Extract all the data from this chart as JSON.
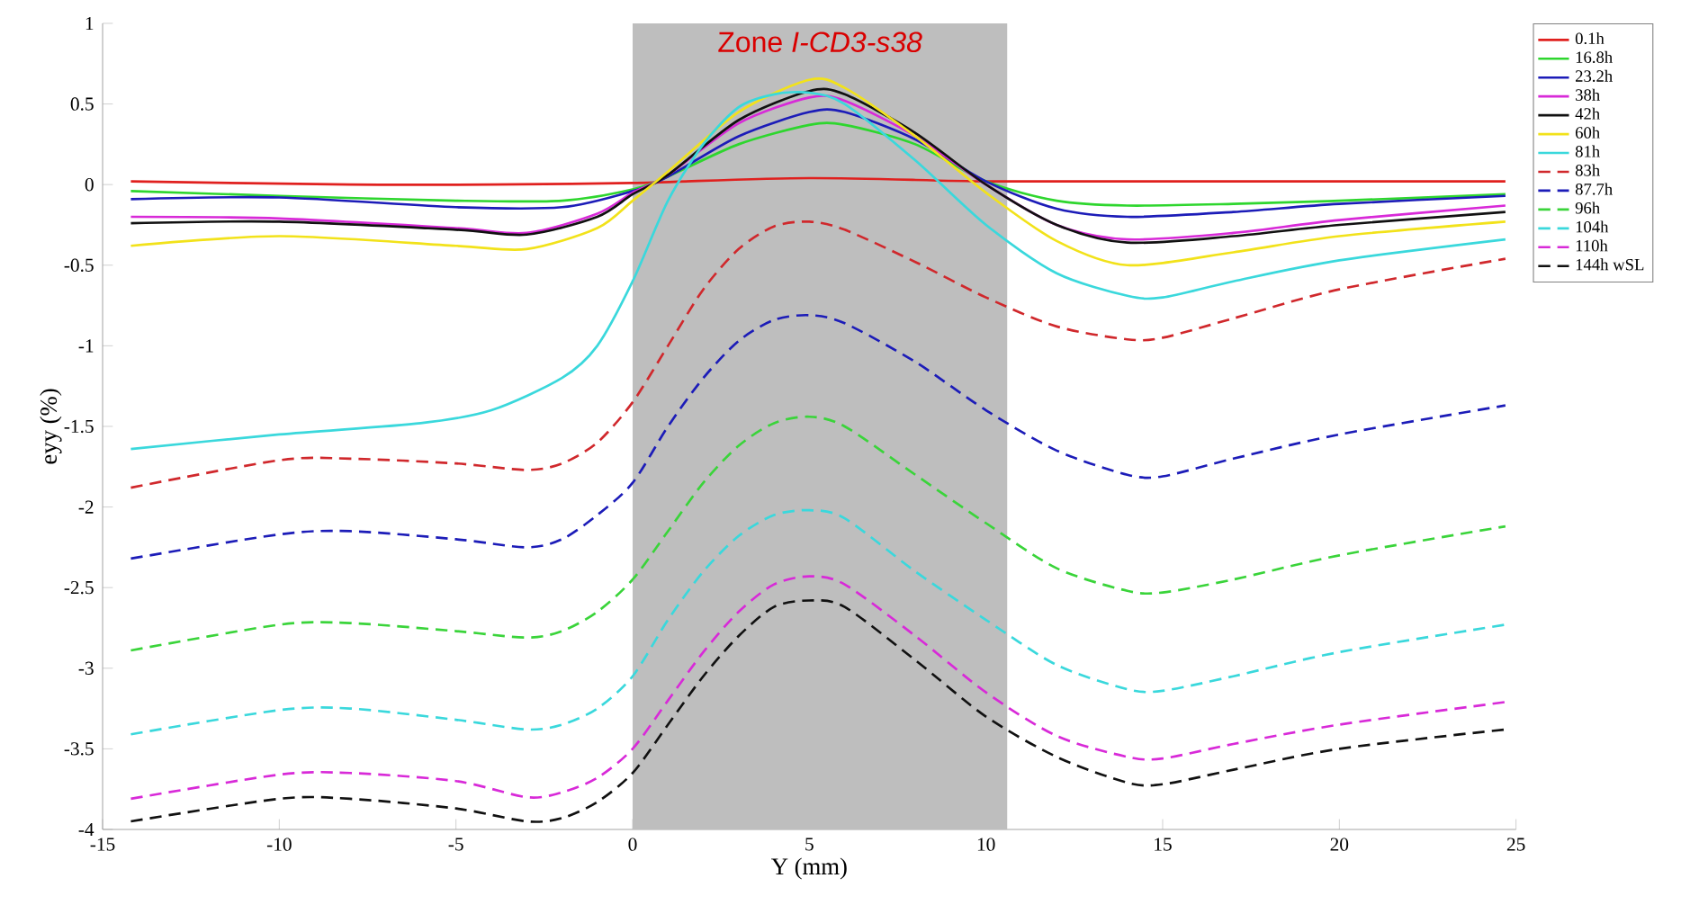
{
  "chart_data": {
    "type": "line",
    "xlabel": "Y (mm)",
    "ylabel": "eyy (%)",
    "xlim": [
      -15,
      25
    ],
    "ylim": [
      -4,
      1
    ],
    "xticks": [
      -15,
      -10,
      -5,
      0,
      5,
      10,
      15,
      20,
      25
    ],
    "yticks": [
      -4,
      -3.5,
      -3,
      -2.5,
      -2,
      -1.5,
      -1,
      -0.5,
      0,
      0.5,
      1
    ],
    "grid": false,
    "legend": "top right",
    "bands": [
      {
        "axis": "x",
        "from": 0,
        "to": 10.6,
        "label": "Zone *I-CD3-s38*",
        "color": "#bebebe"
      }
    ],
    "series": [
      {
        "name": "0.1h",
        "color": "#e0201e",
        "line_style": "solid",
        "x": [
          -14.2,
          -8,
          -4,
          0,
          5,
          10,
          15,
          24.7
        ],
        "values": [
          0.02,
          0,
          0,
          0.01,
          0.04,
          0.02,
          0.02,
          0.02
        ]
      },
      {
        "name": "16.8h",
        "color": "#2ed62e",
        "line_style": "solid",
        "x": [
          -14.2,
          -10,
          -5,
          -2,
          0,
          1,
          3,
          5,
          6,
          8,
          10,
          12,
          14,
          17,
          20,
          24.7
        ],
        "values": [
          -0.04,
          -0.07,
          -0.1,
          -0.1,
          -0.03,
          0.05,
          0.25,
          0.37,
          0.37,
          0.25,
          0.02,
          -0.1,
          -0.13,
          -0.12,
          -0.1,
          -0.06
        ]
      },
      {
        "name": "23.2h",
        "color": "#1c1cb8",
        "line_style": "solid",
        "x": [
          -14.2,
          -10,
          -5,
          -2,
          0,
          1,
          3,
          5,
          6,
          8,
          10,
          12,
          14,
          17,
          20,
          24.7
        ],
        "values": [
          -0.09,
          -0.08,
          -0.14,
          -0.14,
          -0.04,
          0.05,
          0.3,
          0.45,
          0.45,
          0.28,
          0.02,
          -0.15,
          -0.2,
          -0.17,
          -0.12,
          -0.07
        ]
      },
      {
        "name": "38h",
        "color": "#d82ad8",
        "line_style": "solid",
        "x": [
          -14.2,
          -10,
          -5,
          -3,
          -1,
          0,
          1,
          3,
          5,
          6,
          8,
          10,
          12,
          14,
          17,
          20,
          24.7
        ],
        "values": [
          -0.2,
          -0.21,
          -0.27,
          -0.3,
          -0.18,
          -0.05,
          0.06,
          0.38,
          0.54,
          0.52,
          0.3,
          0,
          -0.25,
          -0.34,
          -0.3,
          -0.22,
          -0.13
        ]
      },
      {
        "name": "42h",
        "color": "#111111",
        "line_style": "solid",
        "x": [
          -14.2,
          -10,
          -5,
          -3,
          -1,
          0,
          1,
          3,
          5,
          6,
          8,
          10,
          12,
          14,
          17,
          20,
          24.7
        ],
        "values": [
          -0.24,
          -0.23,
          -0.28,
          -0.31,
          -0.2,
          -0.06,
          0.06,
          0.4,
          0.58,
          0.56,
          0.32,
          0,
          -0.25,
          -0.36,
          -0.32,
          -0.25,
          -0.17
        ]
      },
      {
        "name": "60h",
        "color": "#f2e21a",
        "line_style": "solid",
        "x": [
          -14.2,
          -10,
          -5,
          -3,
          -1,
          0,
          1,
          3,
          5,
          6,
          8,
          10,
          12,
          14,
          17,
          20,
          24.7
        ],
        "values": [
          -0.38,
          -0.32,
          -0.38,
          -0.4,
          -0.27,
          -0.1,
          0.08,
          0.45,
          0.65,
          0.6,
          0.3,
          -0.05,
          -0.35,
          -0.5,
          -0.42,
          -0.32,
          -0.23
        ]
      },
      {
        "name": "81h",
        "color": "#3ad8dc",
        "line_style": "solid",
        "x": [
          -14.2,
          -10,
          -6,
          -4,
          -2,
          -1,
          0,
          1,
          2,
          3,
          4,
          5,
          6,
          8,
          10,
          12,
          14,
          15,
          17,
          20,
          24.7
        ],
        "values": [
          -1.64,
          -1.55,
          -1.48,
          -1.4,
          -1.2,
          -1.0,
          -0.6,
          -0.1,
          0.25,
          0.48,
          0.56,
          0.57,
          0.5,
          0.15,
          -0.25,
          -0.55,
          -0.69,
          -0.7,
          -0.6,
          -0.47,
          -0.34
        ]
      },
      {
        "name": "83h",
        "color": "#d0282c",
        "line_style": "dashed",
        "x": [
          -14.2,
          -10,
          -8,
          -5,
          -3,
          -2,
          -1,
          0,
          1,
          2,
          3,
          4,
          5,
          6,
          8,
          10,
          12,
          14,
          15,
          17,
          20,
          24.7
        ],
        "values": [
          -1.88,
          -1.71,
          -1.7,
          -1.73,
          -1.77,
          -1.73,
          -1.6,
          -1.35,
          -1.0,
          -0.65,
          -0.4,
          -0.26,
          -0.23,
          -0.28,
          -0.48,
          -0.7,
          -0.88,
          -0.96,
          -0.95,
          -0.83,
          -0.65,
          -0.46
        ]
      },
      {
        "name": "87.7h",
        "color": "#1c1cb8",
        "line_style": "dashed",
        "x": [
          -14.2,
          -10,
          -8,
          -5,
          -3,
          -2,
          -1,
          0,
          1,
          2,
          3,
          4,
          5,
          6,
          8,
          10,
          12,
          14,
          15,
          17,
          20,
          24.7
        ],
        "values": [
          -2.32,
          -2.17,
          -2.15,
          -2.2,
          -2.25,
          -2.2,
          -2.05,
          -1.85,
          -1.5,
          -1.2,
          -0.97,
          -0.84,
          -0.81,
          -0.86,
          -1.1,
          -1.4,
          -1.65,
          -1.8,
          -1.81,
          -1.7,
          -1.55,
          -1.37
        ]
      },
      {
        "name": "96h",
        "color": "#3ad43a",
        "line_style": "dashed",
        "x": [
          -14.2,
          -10,
          -8,
          -5,
          -3,
          -2,
          -1,
          0,
          1,
          2,
          3,
          4,
          5,
          6,
          8,
          10,
          12,
          14,
          15,
          17,
          20,
          24.7
        ],
        "values": [
          -2.89,
          -2.73,
          -2.72,
          -2.77,
          -2.81,
          -2.77,
          -2.65,
          -2.45,
          -2.15,
          -1.85,
          -1.62,
          -1.48,
          -1.44,
          -1.5,
          -1.8,
          -2.1,
          -2.38,
          -2.52,
          -2.53,
          -2.45,
          -2.3,
          -2.12
        ]
      },
      {
        "name": "104h",
        "color": "#3ad8dc",
        "line_style": "dashed",
        "x": [
          -14.2,
          -10,
          -8,
          -5,
          -3,
          -2,
          -1,
          0,
          1,
          2,
          3,
          4,
          5,
          6,
          8,
          10,
          12,
          14,
          15,
          17,
          20,
          24.7
        ],
        "values": [
          -3.41,
          -3.26,
          -3.25,
          -3.32,
          -3.38,
          -3.35,
          -3.25,
          -3.05,
          -2.7,
          -2.4,
          -2.18,
          -2.05,
          -2.02,
          -2.07,
          -2.4,
          -2.7,
          -2.98,
          -3.13,
          -3.14,
          -3.05,
          -2.9,
          -2.73
        ]
      },
      {
        "name": "110h",
        "color": "#d82ad8",
        "line_style": "dashed",
        "x": [
          -14.2,
          -10,
          -8,
          -5,
          -3,
          -2,
          -1,
          0,
          1,
          2,
          3,
          4,
          5,
          6,
          8,
          10,
          12,
          14,
          15,
          17,
          20,
          24.7
        ],
        "values": [
          -3.81,
          -3.66,
          -3.65,
          -3.7,
          -3.8,
          -3.77,
          -3.68,
          -3.5,
          -3.2,
          -2.9,
          -2.65,
          -2.48,
          -2.43,
          -2.48,
          -2.8,
          -3.15,
          -3.42,
          -3.55,
          -3.56,
          -3.47,
          -3.35,
          -3.21
        ]
      },
      {
        "name": "144h wSL",
        "color": "#111111",
        "line_style": "dashed",
        "x": [
          -14.2,
          -10,
          -8,
          -5,
          -3,
          -2,
          -1,
          0,
          1,
          2,
          3,
          4,
          5,
          6,
          8,
          10,
          12,
          14,
          15,
          17,
          20,
          24.7
        ],
        "values": [
          -3.95,
          -3.81,
          -3.81,
          -3.87,
          -3.95,
          -3.93,
          -3.83,
          -3.65,
          -3.35,
          -3.05,
          -2.8,
          -2.62,
          -2.58,
          -2.62,
          -2.95,
          -3.3,
          -3.55,
          -3.71,
          -3.72,
          -3.63,
          -3.5,
          -3.38
        ]
      }
    ]
  }
}
